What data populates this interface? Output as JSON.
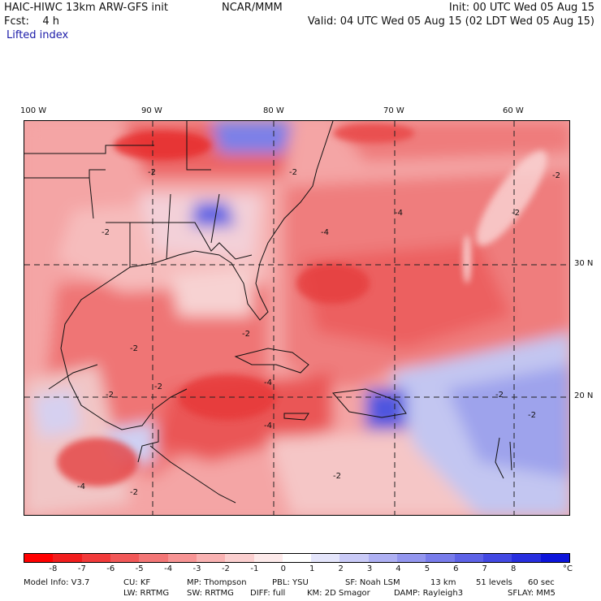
{
  "header": {
    "left_line1": "HAIC-HIWC 13km ARW-GFS init",
    "center_line1": "NCAR/MMM",
    "right_line1": "Init: 00 UTC Wed 05 Aug 15",
    "left_line2": "Fcst:    4 h",
    "right_line2": "Valid: 04 UTC Wed 05 Aug 15 (02 LDT Wed 05 Aug 15)",
    "field": "Lifted index"
  },
  "map": {
    "longitude_labels": [
      "100 W",
      "90 W",
      "80 W",
      "70 W",
      "60 W"
    ],
    "latitude_labels": [
      "30 N",
      "20 N"
    ],
    "contour_labels": [
      "-2",
      "-2",
      "-2",
      "-2",
      "-4",
      "-2",
      "-2",
      "-2",
      "-4",
      "-4",
      "-4",
      "-2",
      "-2",
      "-4",
      "-2",
      "-2",
      "-2",
      "-2"
    ],
    "colors": {
      "strong_negative": "#e3171d",
      "mid_negative": "#f07272",
      "weak_negative": "#f8b9b9",
      "neutral": "#fbe6e6",
      "weak_positive": "#c5c8f4",
      "mid_positive": "#7c84e8",
      "strong_positive": "#2a2ad8"
    }
  },
  "colorbar": {
    "colors": [
      "#ff0000",
      "#f21d1d",
      "#f23a3a",
      "#f25858",
      "#f37676",
      "#f79494",
      "#f9b2b2",
      "#fbcfcf",
      "#fdeaea",
      "#ffffff",
      "#e4e5fb",
      "#c9caf7",
      "#aeb0f3",
      "#9396ef",
      "#787ceb",
      "#5d62e7",
      "#4248e3",
      "#272edf",
      "#0c14db"
    ],
    "tick_labels": [
      "-8",
      "-7",
      "-6",
      "-5",
      "-4",
      "-3",
      "-2",
      "-1",
      "0",
      "1",
      "2",
      "3",
      "4",
      "5",
      "6",
      "7",
      "8"
    ],
    "unit": "°C"
  },
  "model_info": {
    "line1_items": [
      "Model Info: V3.7",
      "CU: KF",
      "MP: Thompson",
      "PBL: YSU",
      "SF: Noah LSM",
      "13 km",
      "51 levels",
      "60 sec"
    ],
    "line2_items": [
      "LW: RRTMG",
      "SW: RRTMG",
      "DIFF: full",
      "KM: 2D Smagor",
      "DAMP: Rayleigh3",
      "SFLAY: MM5"
    ]
  }
}
